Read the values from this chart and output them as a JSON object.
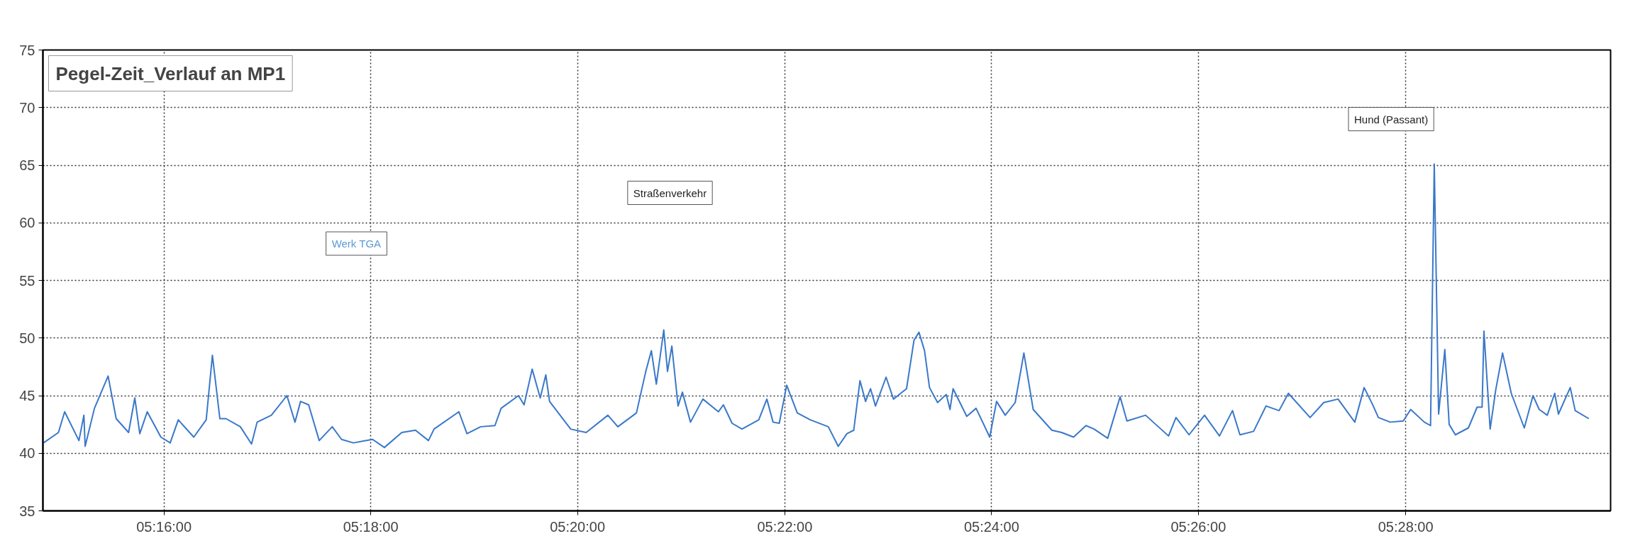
{
  "chart_data": {
    "type": "line",
    "title": "Pegel-Zeit_Verlauf an MP1",
    "annotations": [
      "Werk TGA",
      "Straßenverkehr",
      "Hund (Passant)"
    ],
    "xlim": [
      5.2472,
      5.4997
    ],
    "ylim": [
      35,
      75
    ],
    "xticks": [
      {
        "value": 5.2667,
        "label": "05:16:00"
      },
      {
        "value": 5.3,
        "label": "05:18:00"
      },
      {
        "value": 5.3333,
        "label": "05:20:00"
      },
      {
        "value": 5.3667,
        "label": "05:22:00"
      },
      {
        "value": 5.4,
        "label": "05:24:00"
      },
      {
        "value": 5.4333,
        "label": "05:26:00"
      },
      {
        "value": 5.4667,
        "label": "05:28:00"
      }
    ],
    "yticks": [
      35,
      40,
      45,
      50,
      55,
      60,
      65,
      70,
      75
    ],
    "grid": true,
    "marker": "none",
    "line_style": "solid",
    "series": [
      {
        "color": "#3a78c9",
        "x": [
          5.2473,
          5.2497,
          5.2507,
          5.253,
          5.2538,
          5.254,
          5.2555,
          5.2577,
          5.259,
          5.261,
          5.262,
          5.2628,
          5.264,
          5.2662,
          5.2677,
          5.269,
          5.2715,
          5.2735,
          5.2745,
          5.2757,
          5.2767,
          5.279,
          5.2808,
          5.2817,
          5.284,
          5.2865,
          5.2878,
          5.2887,
          5.29,
          5.2917,
          5.2938,
          5.2953,
          5.2972,
          5.3003,
          5.3022,
          5.305,
          5.3072,
          5.3093,
          5.3102,
          5.3142,
          5.3155,
          5.3177,
          5.32,
          5.321,
          5.3238,
          5.3247,
          5.326,
          5.3273,
          5.3282,
          5.3288,
          5.3322,
          5.3347,
          5.3382,
          5.3398,
          5.3428,
          5.3443,
          5.3452,
          5.346,
          5.3472,
          5.3478,
          5.3485,
          5.3495,
          5.3502,
          5.3515,
          5.3535,
          5.356,
          5.3568,
          5.3582,
          5.3598,
          5.3625,
          5.3638,
          5.3648,
          5.3658,
          5.367,
          5.3687,
          5.3708,
          5.3737,
          5.3753,
          5.3767,
          5.3778,
          5.3788,
          5.3797,
          5.3805,
          5.3813,
          5.383,
          5.3842,
          5.3863,
          5.3875,
          5.3883,
          5.3892,
          5.39,
          5.3913,
          5.3927,
          5.3933,
          5.3938,
          5.396,
          5.3975,
          5.3997,
          5.4008,
          5.4022,
          5.4038,
          5.4052,
          5.4067,
          5.4097,
          5.4113,
          5.4132,
          5.4152,
          5.4165,
          5.4187,
          5.4207,
          5.4218,
          5.4248,
          5.4285,
          5.4297,
          5.4318,
          5.4343,
          5.4367,
          5.4388,
          5.44,
          5.4422,
          5.4442,
          5.4463,
          5.4478,
          5.4513,
          5.4535,
          5.4558,
          5.4585,
          5.46,
          5.4613,
          5.4623,
          5.4642,
          5.4663,
          5.4675,
          5.4697,
          5.4707,
          5.4713,
          5.472,
          5.473,
          5.4737,
          5.4747,
          5.4768,
          5.4782,
          5.479,
          5.4793,
          5.4803,
          5.4812,
          5.4823,
          5.4837,
          5.4858,
          5.4872,
          5.4882,
          5.4895,
          5.4907,
          5.4913,
          5.4932,
          5.494,
          5.4962
        ],
        "values": [
          40.9,
          41.8,
          43.6,
          41.1,
          43.3,
          40.6,
          43.9,
          46.7,
          43.0,
          41.8,
          44.8,
          41.7,
          43.6,
          41.4,
          40.9,
          42.9,
          41.4,
          42.9,
          48.5,
          43.0,
          43.0,
          42.3,
          40.8,
          42.7,
          43.3,
          45.0,
          42.7,
          44.5,
          44.2,
          41.1,
          42.3,
          41.2,
          40.9,
          41.2,
          40.5,
          41.8,
          42.0,
          41.1,
          42.1,
          43.6,
          41.7,
          42.3,
          42.4,
          43.9,
          45.0,
          44.2,
          47.3,
          44.8,
          46.8,
          44.5,
          42.1,
          41.8,
          43.3,
          42.3,
          43.5,
          47.1,
          48.9,
          46.0,
          50.7,
          47.1,
          49.3,
          44.1,
          45.3,
          42.7,
          44.7,
          43.6,
          44.2,
          42.6,
          42.1,
          42.9,
          44.7,
          42.7,
          42.6,
          45.9,
          43.5,
          42.9,
          42.3,
          40.6,
          41.7,
          42.0,
          46.3,
          44.5,
          45.6,
          44.1,
          46.6,
          44.7,
          45.6,
          49.8,
          50.5,
          48.9,
          45.7,
          44.4,
          45.1,
          43.8,
          45.6,
          43.2,
          43.9,
          41.4,
          44.5,
          43.3,
          44.4,
          48.7,
          43.8,
          42.0,
          41.8,
          41.4,
          42.4,
          42.1,
          41.3,
          44.9,
          42.8,
          43.3,
          41.5,
          43.1,
          41.6,
          43.3,
          41.5,
          43.7,
          41.6,
          41.9,
          44.1,
          43.7,
          45.2,
          43.1,
          44.4,
          44.7,
          42.7,
          45.7,
          44.3,
          43.1,
          42.7,
          42.8,
          43.8,
          42.7,
          42.4,
          65.1,
          43.4,
          49.0,
          42.5,
          41.6,
          42.2,
          44.0,
          44.0,
          50.6,
          42.1,
          45.5,
          48.7,
          45.2,
          42.2,
          45.0,
          43.8,
          43.3,
          45.2,
          43.4,
          45.7,
          43.7,
          43.0
        ]
      }
    ]
  }
}
